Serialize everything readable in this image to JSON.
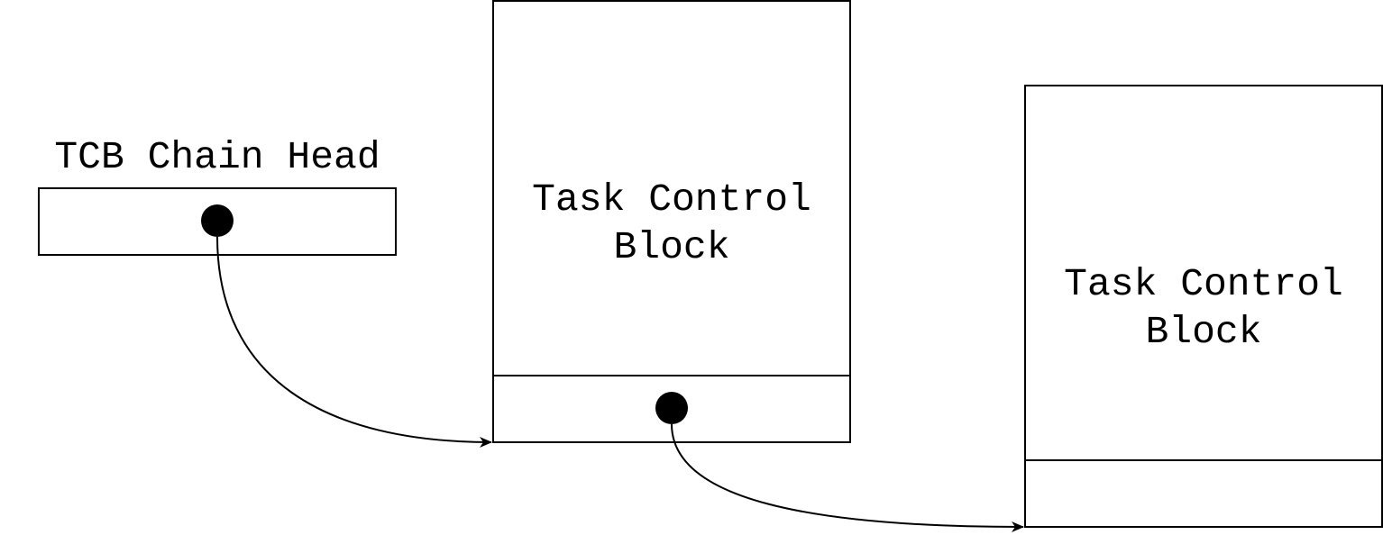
{
  "head": {
    "label": "TCB Chain Head"
  },
  "blocks": [
    {
      "line1": "Task Control",
      "line2": "Block",
      "has_next_pointer": true
    },
    {
      "line1": "Task Control",
      "line2": "Block",
      "has_next_pointer": false
    }
  ],
  "colors": {
    "stroke": "#000000",
    "background": "#ffffff"
  }
}
